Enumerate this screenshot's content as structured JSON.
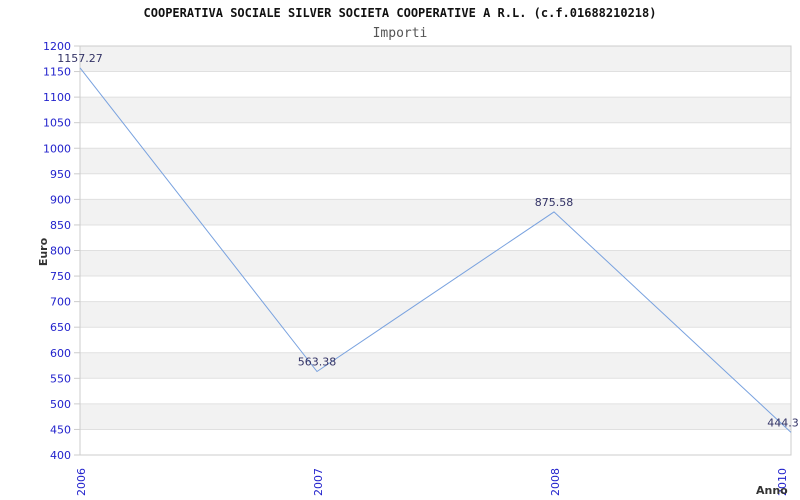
{
  "chart_data": {
    "type": "line",
    "title": "COOPERATIVA SOCIALE SILVER SOCIETA COOPERATIVE A R.L. (c.f.01688210218)",
    "subtitle": "Importi",
    "xlabel": "Anno",
    "ylabel": "Euro",
    "categories": [
      "2006",
      "2007",
      "2008",
      "2010"
    ],
    "values": [
      1157.27,
      563.38,
      875.58,
      444.3
    ],
    "point_labels": [
      "1157.27",
      "563.38",
      "875.58",
      "444.3"
    ],
    "ylim": [
      400,
      1200
    ],
    "ytick_step": 50,
    "grid": "horizontal-bands-alternating",
    "legend": "none",
    "colors": {
      "line": "#79a2df",
      "tick_label": "#2222cc",
      "point_label": "#333366",
      "band": "#f2f2f2",
      "gridline": "#e0e0e0",
      "border": "#cccccc",
      "background": "#ffffff"
    }
  }
}
